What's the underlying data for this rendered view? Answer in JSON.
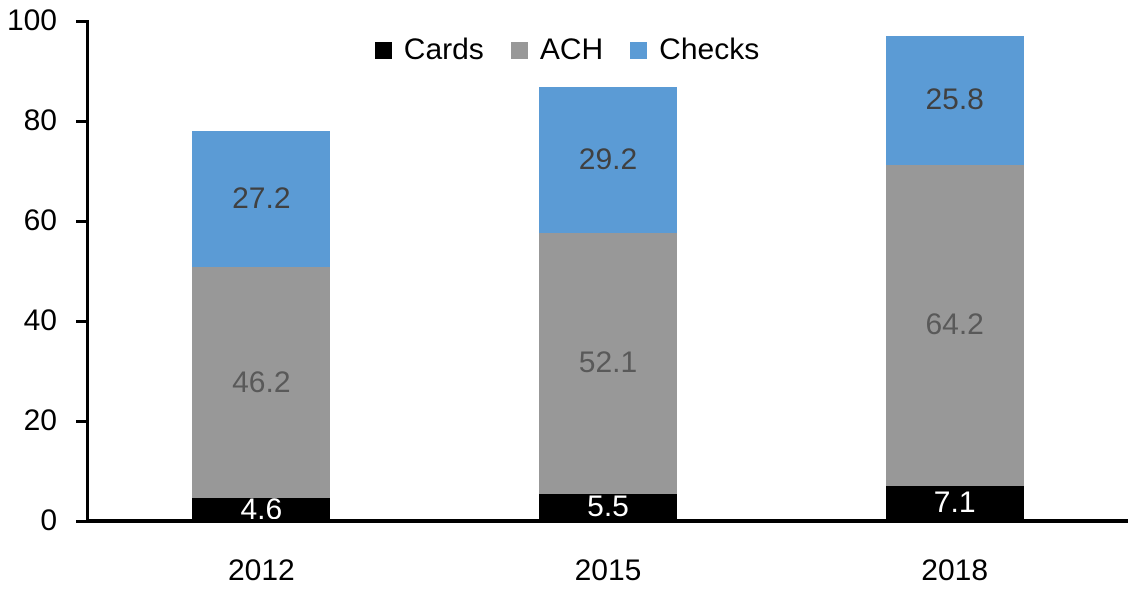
{
  "chart_data": {
    "type": "bar",
    "stacked": true,
    "title": "",
    "categories": [
      "2012",
      "2015",
      "2018"
    ],
    "series": [
      {
        "name": "Cards",
        "color": "#000000",
        "label_color": "#ffffff",
        "values": [
          4.6,
          5.5,
          7.1
        ]
      },
      {
        "name": "ACH",
        "color": "#989898",
        "label_color": "#595959",
        "values": [
          46.2,
          52.1,
          64.2
        ]
      },
      {
        "name": "Checks",
        "color": "#5b9bd5",
        "label_color": "#404040",
        "values": [
          27.2,
          29.2,
          25.8
        ]
      }
    ],
    "totals": [
      78.0,
      86.8,
      97.1
    ],
    "y_axis": {
      "min": 0,
      "max": 100,
      "tick_interval": 20,
      "ticks": [
        0,
        20,
        40,
        60,
        80,
        100
      ]
    },
    "x_axis_label": "",
    "y_axis_label": "",
    "legend_position": "top-center",
    "grid": false,
    "data_labels": true,
    "axis_color": "#000000",
    "text_color": "#000000"
  }
}
